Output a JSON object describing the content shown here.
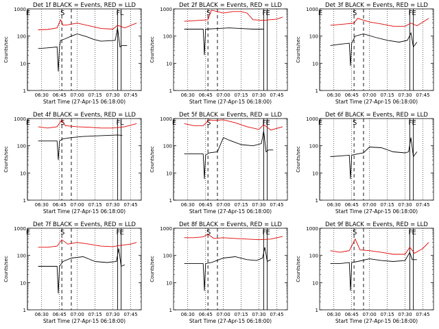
{
  "colors": {
    "events": "#000000",
    "lld": "#e00000",
    "axes": "#000000",
    "background": "#ffffff"
  },
  "axis": {
    "ylabel": "Counts/sec",
    "xlabel": "Start Time (27-Apr-15 06:18:00)",
    "xticks": [
      "06:30",
      "06:45",
      "07:00",
      "07:15",
      "07:30",
      "07:45"
    ],
    "yticks": [
      "1",
      "10",
      "100",
      "1000"
    ],
    "yscale": "log"
  },
  "chart_data": [
    {
      "type": "line",
      "title": "Det 1f BLACK = Events, RED = LLD",
      "xlabel": "Start Time (27-Apr-15 06:18:00)",
      "ylabel": "Counts/sec",
      "ylim": [
        1,
        1000
      ],
      "xlim": [
        "06:18",
        "07:54"
      ],
      "markers": {
        "E": "06:18",
        "S": "06:47",
        "F": "07:34",
        "L": "07:37"
      },
      "series": [
        {
          "name": "BLACK = Events",
          "color": "#000000",
          "x": [
            "06:27",
            "06:35",
            "06:43",
            "06:44",
            "06:45",
            "06:46",
            "06:50",
            "06:55",
            "07:00",
            "07:08",
            "07:14",
            "07:20",
            "07:28",
            "07:32",
            "07:34",
            "07:36",
            "07:38",
            "07:42"
          ],
          "values": [
            35,
            37,
            40,
            5,
            40,
            70,
            80,
            100,
            120,
            95,
            75,
            65,
            68,
            70,
            200,
            40,
            45,
            45
          ]
        },
        {
          "name": "RED = LLD",
          "color": "#e00000",
          "x": [
            "06:27",
            "06:35",
            "06:43",
            "06:46",
            "06:48",
            "06:52",
            "07:00",
            "07:10",
            "07:20",
            "07:30",
            "07:34",
            "07:40",
            "07:50"
          ],
          "values": [
            170,
            175,
            200,
            400,
            250,
            260,
            300,
            240,
            190,
            180,
            250,
            200,
            300
          ]
        }
      ]
    },
    {
      "type": "line",
      "title": "Det 2f BLACK = Events, RED = LLD",
      "xlabel": "Start Time (27-Apr-15 06:18:00)",
      "ylabel": "Counts/sec",
      "ylim": [
        1,
        1000
      ],
      "xlim": [
        "06:18",
        "07:54"
      ],
      "markers": {
        "S": "06:47",
        "F": "07:34",
        "E": "07:37"
      },
      "series": [
        {
          "name": "BLACK = Events",
          "color": "#000000",
          "x": [
            "06:27",
            "06:38",
            "06:43",
            "06:44",
            "06:45",
            "06:46",
            "06:55",
            "07:05",
            "07:15",
            "07:25",
            "07:34"
          ],
          "values": [
            180,
            180,
            180,
            20,
            180,
            180,
            190,
            200,
            190,
            180,
            180
          ]
        },
        {
          "name": "RED = LLD",
          "color": "#e00000",
          "x": [
            "06:27",
            "06:40",
            "06:47",
            "06:50",
            "07:00",
            "07:08",
            "07:15",
            "07:20",
            "07:25",
            "07:34",
            "07:45",
            "07:50"
          ],
          "values": [
            350,
            380,
            400,
            900,
            700,
            800,
            800,
            700,
            400,
            380,
            420,
            500
          ]
        }
      ]
    },
    {
      "type": "line",
      "title": "Det 3f BLACK = Events, RED = LLD",
      "xlabel": "Start Time (27-Apr-15 06:18:00)",
      "ylabel": "Counts/sec",
      "ylim": [
        1,
        1000
      ],
      "xlim": [
        "06:18",
        "07:54"
      ],
      "markers": {
        "E": "06:18",
        "S": "06:47",
        "F": "07:34",
        "E2": "07:37"
      },
      "series": [
        {
          "name": "BLACK = Events",
          "color": "#000000",
          "x": [
            "06:27",
            "06:35",
            "06:43",
            "06:44",
            "06:45",
            "06:48",
            "06:55",
            "07:05",
            "07:15",
            "07:25",
            "07:32",
            "07:35",
            "07:37",
            "07:40"
          ],
          "values": [
            45,
            50,
            55,
            8,
            55,
            100,
            120,
            90,
            70,
            60,
            70,
            130,
            40,
            60
          ]
        },
        {
          "name": "RED = LLD",
          "color": "#e00000",
          "x": [
            "06:27",
            "06:40",
            "06:47",
            "06:50",
            "07:00",
            "07:10",
            "07:20",
            "07:30",
            "07:35",
            "07:40",
            "07:50"
          ],
          "values": [
            250,
            280,
            300,
            450,
            330,
            280,
            230,
            230,
            300,
            240,
            450
          ]
        }
      ]
    },
    {
      "type": "line",
      "title": "Det 4f BLACK = Events, RED = LLD",
      "xlabel": "Start Time (27-Apr-15 06:18:00)",
      "ylabel": "Counts/sec",
      "ylim": [
        1,
        1000
      ],
      "xlim": [
        "06:18",
        "07:54"
      ],
      "markers": {
        "E": "06:18",
        "S": "06:47",
        "F": "07:34",
        "L": "07:37"
      },
      "series": [
        {
          "name": "BLACK = Events",
          "color": "#000000",
          "x": [
            "06:27",
            "06:35",
            "06:43",
            "06:44",
            "06:45",
            "06:48",
            "06:55",
            "07:05",
            "07:15",
            "07:25",
            "07:34",
            "07:38"
          ],
          "values": [
            150,
            150,
            150,
            30,
            150,
            180,
            200,
            220,
            230,
            240,
            250,
            240
          ]
        },
        {
          "name": "RED = LLD",
          "color": "#e00000",
          "x": [
            "06:27",
            "06:35",
            "06:43",
            "06:47",
            "06:50",
            "07:00",
            "07:10",
            "07:20",
            "07:30",
            "07:40",
            "07:50"
          ],
          "values": [
            500,
            450,
            500,
            900,
            550,
            500,
            480,
            450,
            450,
            500,
            650
          ]
        }
      ]
    },
    {
      "type": "line",
      "title": "Det 5f BLACK = Events, RED = LLD",
      "xlabel": "Start Time (27-Apr-15 06:18:00)",
      "ylabel": "Counts/sec",
      "ylim": [
        1,
        1000
      ],
      "xlim": [
        "06:18",
        "07:54"
      ],
      "markers": {
        "E": "06:18",
        "S": "06:47",
        "F": "07:34",
        "E2": "07:37"
      },
      "series": [
        {
          "name": "BLACK = Events",
          "color": "#000000",
          "x": [
            "06:27",
            "06:35",
            "06:43",
            "06:44",
            "06:45",
            "06:48",
            "06:55",
            "07:00",
            "07:05",
            "07:15",
            "07:25",
            "07:32",
            "07:34",
            "07:36",
            "07:38",
            "07:42"
          ],
          "values": [
            50,
            50,
            50,
            6,
            45,
            55,
            60,
            200,
            160,
            110,
            100,
            120,
            350,
            60,
            70,
            70
          ]
        },
        {
          "name": "RED = LLD",
          "color": "#e00000",
          "x": [
            "06:27",
            "06:35",
            "06:43",
            "06:48",
            "06:52",
            "07:00",
            "07:10",
            "07:20",
            "07:30",
            "07:34",
            "07:40",
            "07:50"
          ],
          "values": [
            650,
            550,
            550,
            900,
            850,
            900,
            700,
            500,
            400,
            600,
            380,
            500
          ]
        }
      ]
    },
    {
      "type": "line",
      "title": "Det 6f BLACK = Events, RED = LLD",
      "xlabel": "Start Time (27-Apr-15 06:18:00)",
      "ylabel": "Counts/sec",
      "ylim": [
        1,
        1000
      ],
      "xlim": [
        "06:18",
        "07:54"
      ],
      "markers": {
        "E": "06:18",
        "S": "06:47",
        "F": "07:34",
        "E2": "07:37"
      },
      "series": [
        {
          "name": "BLACK = Events",
          "color": "#000000",
          "x": [
            "06:27",
            "06:35",
            "06:43",
            "06:44",
            "06:45",
            "06:50",
            "06:55",
            "07:00",
            "07:10",
            "07:20",
            "07:30",
            "07:33",
            "07:35",
            "07:37",
            "07:40"
          ],
          "values": [
            40,
            42,
            45,
            6,
            45,
            50,
            55,
            90,
            85,
            60,
            55,
            60,
            200,
            40,
            60
          ]
        }
      ]
    },
    {
      "type": "line",
      "title": "Det 7f BLACK = Events, RED = LLD",
      "xlabel": "Start Time (27-Apr-15 06:18:00)",
      "ylabel": "Counts/sec",
      "ylim": [
        1,
        1000
      ],
      "xlim": [
        "06:18",
        "07:54"
      ],
      "markers": {
        "E": "06:18",
        "S": "06:47",
        "F": "07:34",
        "E2": "07:37"
      },
      "series": [
        {
          "name": "BLACK = Events",
          "color": "#000000",
          "x": [
            "06:27",
            "06:35",
            "06:43",
            "06:44",
            "06:45",
            "06:48",
            "06:55",
            "07:05",
            "07:15",
            "07:25",
            "07:33",
            "07:35",
            "07:37",
            "07:40"
          ],
          "values": [
            40,
            40,
            40,
            4,
            40,
            60,
            80,
            90,
            60,
            55,
            60,
            180,
            40,
            45
          ]
        },
        {
          "name": "RED = LLD",
          "color": "#e00000",
          "x": [
            "06:27",
            "06:35",
            "06:43",
            "06:47",
            "06:52",
            "07:00",
            "07:10",
            "07:20",
            "07:30",
            "07:35",
            "07:45",
            "07:50"
          ],
          "values": [
            200,
            200,
            220,
            380,
            260,
            300,
            260,
            220,
            210,
            230,
            260,
            300
          ]
        }
      ]
    },
    {
      "type": "line",
      "title": "Det 8f BLACK = Events, RED = LLD",
      "xlabel": "Start Time (27-Apr-15 06:18:00)",
      "ylabel": "Counts/sec",
      "ylim": [
        1,
        1000
      ],
      "xlim": [
        "06:18",
        "07:54"
      ],
      "markers": {
        "S": "06:47",
        "F": "07:34",
        "E": "07:37"
      },
      "series": [
        {
          "name": "BLACK = Events",
          "color": "#000000",
          "x": [
            "06:27",
            "06:35",
            "06:43",
            "06:44",
            "06:45",
            "06:50",
            "07:00",
            "07:10",
            "07:20",
            "07:28",
            "07:33",
            "07:35",
            "07:37",
            "07:40"
          ],
          "values": [
            50,
            50,
            50,
            5,
            50,
            55,
            80,
            90,
            70,
            65,
            80,
            200,
            60,
            70
          ]
        },
        {
          "name": "RED = LLD",
          "color": "#e00000",
          "x": [
            "06:27",
            "06:35",
            "06:43",
            "06:47",
            "06:52",
            "07:00",
            "07:10",
            "07:20",
            "07:30",
            "07:40",
            "07:50"
          ],
          "values": [
            450,
            450,
            480,
            600,
            420,
            450,
            420,
            400,
            380,
            400,
            500
          ]
        }
      ]
    },
    {
      "type": "line",
      "title": "Det 9f BLACK = Events, RED = LLD",
      "xlabel": "Start Time (27-Apr-15 06:18:00)",
      "ylabel": "Counts/sec",
      "ylim": [
        1,
        1000
      ],
      "xlim": [
        "06:18",
        "07:54"
      ],
      "markers": {
        "S": "06:47",
        "F": "07:34",
        "E": "07:37"
      },
      "series": [
        {
          "name": "BLACK = Events",
          "color": "#000000",
          "x": [
            "06:27",
            "06:35",
            "06:43",
            "06:44",
            "06:45",
            "06:50",
            "07:00",
            "07:10",
            "07:20",
            "07:30",
            "07:34",
            "07:36",
            "07:40"
          ],
          "values": [
            50,
            50,
            55,
            5,
            55,
            60,
            75,
            65,
            60,
            65,
            130,
            70,
            70
          ]
        },
        {
          "name": "RED = LLD",
          "color": "#e00000",
          "x": [
            "06:27",
            "06:35",
            "06:43",
            "06:48",
            "06:52",
            "07:00",
            "07:10",
            "07:20",
            "07:30",
            "07:34",
            "07:38",
            "07:45",
            "07:50"
          ],
          "values": [
            150,
            130,
            150,
            400,
            160,
            150,
            130,
            110,
            110,
            200,
            120,
            180,
            300
          ]
        }
      ]
    }
  ]
}
